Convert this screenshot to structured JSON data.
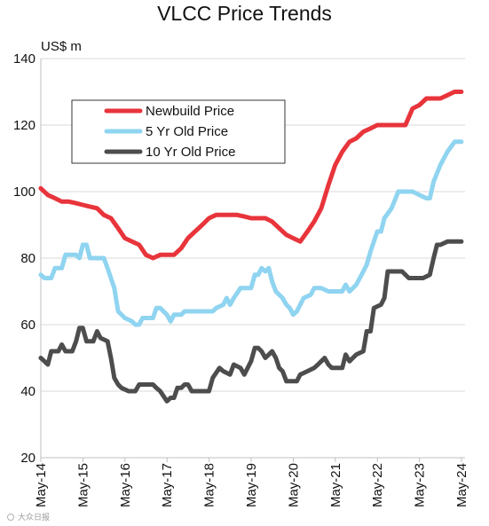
{
  "chart_data": {
    "type": "line",
    "title": "VLCC Price Trends",
    "ylabel": "US$ m",
    "ylim": [
      20,
      140
    ],
    "yticks": [
      20,
      40,
      60,
      80,
      100,
      120,
      140
    ],
    "xlim": [
      2014.333,
      2024.417
    ],
    "xticks": [
      {
        "label": "May-14",
        "value": 2014.333
      },
      {
        "label": "May-15",
        "value": 2015.333
      },
      {
        "label": "May-16",
        "value": 2016.333
      },
      {
        "label": "May-17",
        "value": 2017.333
      },
      {
        "label": "May-18",
        "value": 2018.333
      },
      {
        "label": "May-19",
        "value": 2019.333
      },
      {
        "label": "May-20",
        "value": 2020.333
      },
      {
        "label": "May-21",
        "value": 2021.333
      },
      {
        "label": "May-22",
        "value": 2022.333
      },
      {
        "label": "May-23",
        "value": 2023.333
      },
      {
        "label": "May-24",
        "value": 2024.333
      }
    ],
    "grid": "horizontal",
    "legend_position": "top-left",
    "series": [
      {
        "name": "Newbuild Price",
        "color": "#e8343b",
        "points": [
          [
            2014.33,
            101
          ],
          [
            2014.5,
            99
          ],
          [
            2014.67,
            98
          ],
          [
            2014.83,
            97
          ],
          [
            2015.0,
            97
          ],
          [
            2015.17,
            96.5
          ],
          [
            2015.33,
            96
          ],
          [
            2015.5,
            95.5
          ],
          [
            2015.67,
            95
          ],
          [
            2015.83,
            93
          ],
          [
            2016.0,
            92
          ],
          [
            2016.17,
            89
          ],
          [
            2016.33,
            86
          ],
          [
            2016.5,
            85
          ],
          [
            2016.67,
            84
          ],
          [
            2016.83,
            81
          ],
          [
            2017.0,
            80
          ],
          [
            2017.17,
            81
          ],
          [
            2017.33,
            81
          ],
          [
            2017.5,
            81
          ],
          [
            2017.67,
            83
          ],
          [
            2017.83,
            86
          ],
          [
            2018.0,
            88
          ],
          [
            2018.17,
            90
          ],
          [
            2018.33,
            92
          ],
          [
            2018.5,
            93
          ],
          [
            2018.67,
            93
          ],
          [
            2018.83,
            93
          ],
          [
            2019.0,
            93
          ],
          [
            2019.17,
            92.5
          ],
          [
            2019.33,
            92
          ],
          [
            2019.5,
            92
          ],
          [
            2019.67,
            92
          ],
          [
            2019.83,
            91
          ],
          [
            2020.0,
            89
          ],
          [
            2020.17,
            87
          ],
          [
            2020.33,
            86
          ],
          [
            2020.5,
            85
          ],
          [
            2020.67,
            88
          ],
          [
            2020.83,
            91
          ],
          [
            2021.0,
            95
          ],
          [
            2021.17,
            102
          ],
          [
            2021.33,
            108
          ],
          [
            2021.5,
            112
          ],
          [
            2021.67,
            115
          ],
          [
            2021.83,
            116
          ],
          [
            2022.0,
            118
          ],
          [
            2022.17,
            119
          ],
          [
            2022.33,
            120
          ],
          [
            2022.5,
            120
          ],
          [
            2022.67,
            120
          ],
          [
            2022.83,
            120
          ],
          [
            2023.0,
            120
          ],
          [
            2023.17,
            125
          ],
          [
            2023.33,
            126
          ],
          [
            2023.5,
            128
          ],
          [
            2023.67,
            128
          ],
          [
            2023.83,
            128
          ],
          [
            2024.0,
            129
          ],
          [
            2024.17,
            130
          ],
          [
            2024.33,
            130
          ]
        ]
      },
      {
        "name": "5 Yr Old Price",
        "color": "#8fd4f0",
        "points": [
          [
            2014.33,
            75
          ],
          [
            2014.42,
            74
          ],
          [
            2014.58,
            74
          ],
          [
            2014.67,
            77
          ],
          [
            2014.83,
            77
          ],
          [
            2014.92,
            81
          ],
          [
            2015.08,
            81
          ],
          [
            2015.17,
            81
          ],
          [
            2015.25,
            80
          ],
          [
            2015.33,
            84
          ],
          [
            2015.42,
            84
          ],
          [
            2015.5,
            80
          ],
          [
            2015.67,
            80
          ],
          [
            2015.83,
            80
          ],
          [
            2015.92,
            77
          ],
          [
            2016.0,
            74
          ],
          [
            2016.08,
            71
          ],
          [
            2016.17,
            64
          ],
          [
            2016.33,
            62
          ],
          [
            2016.5,
            61
          ],
          [
            2016.58,
            60
          ],
          [
            2016.67,
            60
          ],
          [
            2016.75,
            62
          ],
          [
            2016.92,
            62
          ],
          [
            2017.0,
            62
          ],
          [
            2017.08,
            65
          ],
          [
            2017.17,
            65
          ],
          [
            2017.33,
            63
          ],
          [
            2017.42,
            61
          ],
          [
            2017.5,
            63
          ],
          [
            2017.67,
            63
          ],
          [
            2017.75,
            64
          ],
          [
            2017.92,
            64
          ],
          [
            2018.08,
            64
          ],
          [
            2018.25,
            64
          ],
          [
            2018.42,
            64
          ],
          [
            2018.5,
            65
          ],
          [
            2018.67,
            66
          ],
          [
            2018.75,
            68
          ],
          [
            2018.83,
            66
          ],
          [
            2018.92,
            68
          ],
          [
            2019.08,
            71
          ],
          [
            2019.25,
            71
          ],
          [
            2019.33,
            71
          ],
          [
            2019.42,
            75
          ],
          [
            2019.5,
            75
          ],
          [
            2019.58,
            77
          ],
          [
            2019.67,
            76
          ],
          [
            2019.75,
            77
          ],
          [
            2019.83,
            73
          ],
          [
            2019.92,
            70
          ],
          [
            2020.0,
            69
          ],
          [
            2020.08,
            68
          ],
          [
            2020.17,
            66
          ],
          [
            2020.25,
            65
          ],
          [
            2020.33,
            63
          ],
          [
            2020.42,
            64
          ],
          [
            2020.5,
            66
          ],
          [
            2020.58,
            68
          ],
          [
            2020.75,
            69
          ],
          [
            2020.83,
            71
          ],
          [
            2021.0,
            71
          ],
          [
            2021.17,
            70
          ],
          [
            2021.33,
            70
          ],
          [
            2021.5,
            70
          ],
          [
            2021.58,
            72
          ],
          [
            2021.67,
            70
          ],
          [
            2021.83,
            72
          ],
          [
            2022.0,
            76
          ],
          [
            2022.08,
            78
          ],
          [
            2022.17,
            82
          ],
          [
            2022.33,
            88
          ],
          [
            2022.42,
            88
          ],
          [
            2022.5,
            92
          ],
          [
            2022.67,
            95
          ],
          [
            2022.83,
            100
          ],
          [
            2023.0,
            100
          ],
          [
            2023.17,
            100
          ],
          [
            2023.33,
            99
          ],
          [
            2023.5,
            98
          ],
          [
            2023.58,
            98
          ],
          [
            2023.67,
            103
          ],
          [
            2023.83,
            108
          ],
          [
            2024.0,
            112
          ],
          [
            2024.17,
            115
          ],
          [
            2024.33,
            115
          ]
        ]
      },
      {
        "name": "10 Yr Old Price",
        "color": "#4d4d4d",
        "points": [
          [
            2014.33,
            50
          ],
          [
            2014.42,
            49
          ],
          [
            2014.5,
            48
          ],
          [
            2014.58,
            52
          ],
          [
            2014.75,
            52
          ],
          [
            2014.83,
            54
          ],
          [
            2014.92,
            52
          ],
          [
            2015.08,
            52
          ],
          [
            2015.17,
            55
          ],
          [
            2015.25,
            59
          ],
          [
            2015.33,
            59
          ],
          [
            2015.42,
            55
          ],
          [
            2015.58,
            55
          ],
          [
            2015.67,
            58
          ],
          [
            2015.75,
            56
          ],
          [
            2015.92,
            55
          ],
          [
            2016.0,
            50
          ],
          [
            2016.08,
            44
          ],
          [
            2016.17,
            42
          ],
          [
            2016.25,
            41
          ],
          [
            2016.42,
            40
          ],
          [
            2016.58,
            40
          ],
          [
            2016.67,
            42
          ],
          [
            2016.83,
            42
          ],
          [
            2017.0,
            42
          ],
          [
            2017.08,
            41
          ],
          [
            2017.17,
            40
          ],
          [
            2017.33,
            37
          ],
          [
            2017.42,
            38
          ],
          [
            2017.5,
            38
          ],
          [
            2017.58,
            41
          ],
          [
            2017.67,
            41
          ],
          [
            2017.75,
            42
          ],
          [
            2017.83,
            42
          ],
          [
            2017.92,
            40
          ],
          [
            2018.0,
            40
          ],
          [
            2018.17,
            40
          ],
          [
            2018.33,
            40
          ],
          [
            2018.42,
            44
          ],
          [
            2018.58,
            47
          ],
          [
            2018.67,
            46
          ],
          [
            2018.83,
            45
          ],
          [
            2018.92,
            48
          ],
          [
            2019.08,
            47
          ],
          [
            2019.17,
            45
          ],
          [
            2019.33,
            49
          ],
          [
            2019.42,
            53
          ],
          [
            2019.5,
            53
          ],
          [
            2019.58,
            52
          ],
          [
            2019.67,
            50
          ],
          [
            2019.75,
            51
          ],
          [
            2019.83,
            52
          ],
          [
            2019.92,
            50
          ],
          [
            2020.0,
            47
          ],
          [
            2020.08,
            46
          ],
          [
            2020.17,
            43
          ],
          [
            2020.33,
            43
          ],
          [
            2020.42,
            43
          ],
          [
            2020.5,
            45
          ],
          [
            2020.67,
            46
          ],
          [
            2020.83,
            47
          ],
          [
            2020.92,
            48
          ],
          [
            2021.0,
            49
          ],
          [
            2021.08,
            50
          ],
          [
            2021.17,
            48
          ],
          [
            2021.25,
            47
          ],
          [
            2021.33,
            47
          ],
          [
            2021.5,
            47
          ],
          [
            2021.58,
            51
          ],
          [
            2021.67,
            49
          ],
          [
            2021.75,
            50
          ],
          [
            2021.83,
            51
          ],
          [
            2022.0,
            52
          ],
          [
            2022.08,
            58
          ],
          [
            2022.17,
            58
          ],
          [
            2022.25,
            65
          ],
          [
            2022.42,
            66
          ],
          [
            2022.5,
            68
          ],
          [
            2022.58,
            76
          ],
          [
            2022.75,
            76
          ],
          [
            2022.92,
            76
          ],
          [
            2023.08,
            74
          ],
          [
            2023.25,
            74
          ],
          [
            2023.42,
            74
          ],
          [
            2023.58,
            75
          ],
          [
            2023.67,
            80
          ],
          [
            2023.75,
            84
          ],
          [
            2023.83,
            84
          ],
          [
            2024.0,
            85
          ],
          [
            2024.33,
            85
          ]
        ]
      }
    ]
  },
  "watermark": "大众日报"
}
